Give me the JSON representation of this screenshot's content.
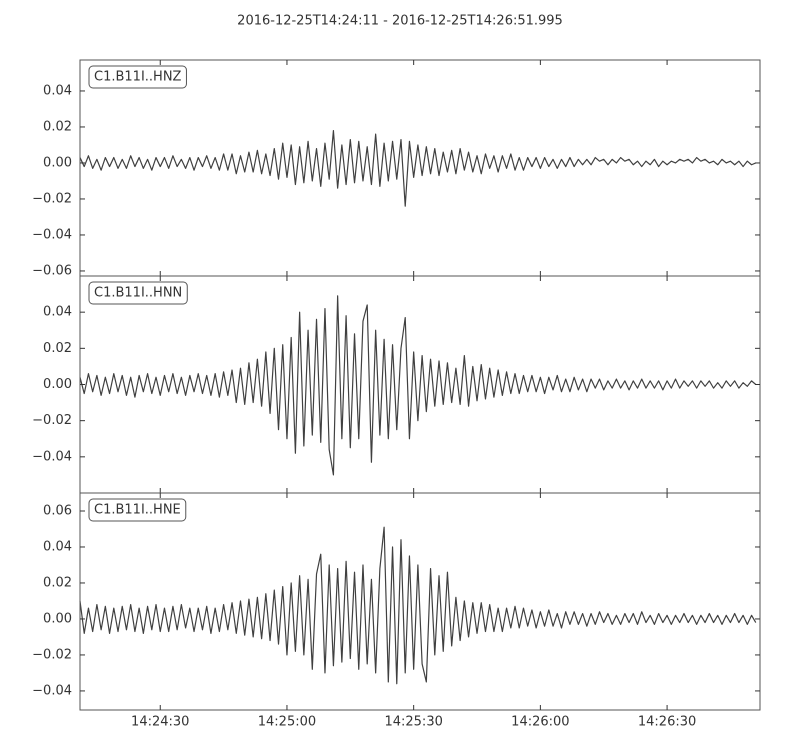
{
  "title": "2016-12-25T14:24:11  -  2016-12-25T14:26:51.995",
  "chart_data": [
    {
      "type": "line",
      "label": "C1.B11I..HNZ",
      "color": "#404040",
      "x": [
        "14:24:11",
        "14:24:12",
        "14:24:13",
        "14:24:14",
        "14:24:15",
        "14:24:16",
        "14:24:17",
        "14:24:18",
        "14:24:19",
        "14:24:20",
        "14:24:21",
        "14:24:22",
        "14:24:23",
        "14:24:24",
        "14:24:25",
        "14:24:26",
        "14:24:27",
        "14:24:28",
        "14:24:29",
        "14:24:30",
        "14:24:31",
        "14:24:32",
        "14:24:33",
        "14:24:34",
        "14:24:35",
        "14:24:36",
        "14:24:37",
        "14:24:38",
        "14:24:39",
        "14:24:40",
        "14:24:41",
        "14:24:42",
        "14:24:43",
        "14:24:44",
        "14:24:45",
        "14:24:46",
        "14:24:47",
        "14:24:48",
        "14:24:49",
        "14:24:50",
        "14:24:51",
        "14:24:52",
        "14:24:53",
        "14:24:54",
        "14:24:55",
        "14:24:56",
        "14:24:57",
        "14:24:58",
        "14:24:59",
        "14:25:00",
        "14:25:01",
        "14:25:02",
        "14:25:03",
        "14:25:04",
        "14:25:05",
        "14:25:06",
        "14:25:07",
        "14:25:08",
        "14:25:09",
        "14:25:10",
        "14:25:11",
        "14:25:12",
        "14:25:13",
        "14:25:14",
        "14:25:15",
        "14:25:16",
        "14:25:17",
        "14:25:18",
        "14:25:19",
        "14:25:20",
        "14:25:21",
        "14:25:22",
        "14:25:23",
        "14:25:24",
        "14:25:25",
        "14:25:26",
        "14:25:27",
        "14:25:28",
        "14:25:29",
        "14:25:30",
        "14:25:31",
        "14:25:32",
        "14:25:33",
        "14:25:34",
        "14:25:35",
        "14:25:36",
        "14:25:37",
        "14:25:38",
        "14:25:39",
        "14:25:40",
        "14:25:41",
        "14:25:42",
        "14:25:43",
        "14:25:44",
        "14:25:45",
        "14:25:46",
        "14:25:47",
        "14:25:48",
        "14:25:49",
        "14:25:50",
        "14:25:51",
        "14:25:52",
        "14:25:53",
        "14:25:54",
        "14:25:55",
        "14:25:56",
        "14:25:57",
        "14:25:58",
        "14:25:59",
        "14:26:00",
        "14:26:01",
        "14:26:02",
        "14:26:03",
        "14:26:04",
        "14:26:05",
        "14:26:06",
        "14:26:07",
        "14:26:08",
        "14:26:09",
        "14:26:10",
        "14:26:11",
        "14:26:12",
        "14:26:13",
        "14:26:14",
        "14:26:15",
        "14:26:16",
        "14:26:17",
        "14:26:18",
        "14:26:19",
        "14:26:20",
        "14:26:21",
        "14:26:22",
        "14:26:23",
        "14:26:24",
        "14:26:25",
        "14:26:26",
        "14:26:27",
        "14:26:28",
        "14:26:29",
        "14:26:30",
        "14:26:31",
        "14:26:32",
        "14:26:33",
        "14:26:34",
        "14:26:35",
        "14:26:36",
        "14:26:37",
        "14:26:38",
        "14:26:39",
        "14:26:40",
        "14:26:41",
        "14:26:42",
        "14:26:43",
        "14:26:44",
        "14:26:45",
        "14:26:46",
        "14:26:47",
        "14:26:48",
        "14:26:49",
        "14:26:50",
        "14:26:51"
      ],
      "values": [
        0.003,
        -0.002,
        0.004,
        -0.003,
        0.002,
        -0.004,
        0.003,
        -0.002,
        0.003,
        -0.003,
        0.002,
        -0.003,
        0.004,
        -0.002,
        0.003,
        -0.003,
        0.002,
        -0.004,
        0.003,
        -0.002,
        0.003,
        -0.003,
        0.004,
        -0.002,
        0.002,
        -0.003,
        0.003,
        -0.004,
        0.003,
        -0.002,
        0.004,
        -0.003,
        0.003,
        -0.004,
        0.005,
        -0.004,
        0.005,
        -0.006,
        0.004,
        -0.005,
        0.006,
        -0.005,
        0.007,
        -0.006,
        0.005,
        -0.007,
        0.008,
        -0.009,
        0.011,
        -0.008,
        0.01,
        -0.012,
        0.009,
        -0.011,
        0.012,
        -0.01,
        0.008,
        -0.013,
        0.011,
        -0.009,
        0.018,
        -0.014,
        0.01,
        -0.012,
        0.013,
        -0.011,
        0.012,
        -0.01,
        0.009,
        -0.012,
        0.016,
        -0.013,
        0.011,
        -0.01,
        0.012,
        -0.009,
        0.013,
        -0.024,
        0.012,
        -0.008,
        0.01,
        -0.007,
        0.009,
        -0.006,
        0.008,
        -0.007,
        0.006,
        -0.005,
        0.007,
        -0.006,
        0.008,
        -0.004,
        0.006,
        -0.005,
        0.004,
        -0.006,
        0.005,
        -0.003,
        0.004,
        -0.005,
        0.004,
        -0.003,
        0.005,
        -0.004,
        0.003,
        -0.004,
        0.003,
        -0.002,
        0.003,
        -0.003,
        0.003,
        -0.002,
        0.002,
        -0.003,
        0.002,
        -0.002,
        0.003,
        -0.002,
        0.002,
        -0.001,
        0.002,
        -0.001,
        0.003,
        0.001,
        0.002,
        -0.001,
        0.002,
        0,
        0.003,
        0.001,
        0.002,
        -0.001,
        0.001,
        -0.002,
        0.001,
        -0.001,
        0.002,
        -0.002,
        0.001,
        -0.001,
        0.001,
        0,
        0.002,
        0.001,
        0.002,
        0,
        0.003,
        0.001,
        0.002,
        0,
        0.001,
        -0.001,
        0.002,
        0,
        0.001,
        -0.001,
        0.001,
        -0.002,
        0.001,
        -0.001,
        0
      ],
      "xlim": [
        "14:24:11",
        "14:26:52"
      ],
      "ylim": [
        -0.0628,
        0.0572
      ],
      "yticks": [
        {
          "value": -0.06,
          "label": "−0.06"
        },
        {
          "value": -0.04,
          "label": "−0.04"
        },
        {
          "value": -0.02,
          "label": "−0.02"
        },
        {
          "value": 0,
          "label": "0.00"
        },
        0.02,
        0.04
      ]
    },
    {
      "type": "line",
      "label": "C1.B11I..HNN",
      "color": "#404040",
      "x": [
        "14:24:11",
        "14:24:12",
        "14:24:13",
        "14:24:14",
        "14:24:15",
        "14:24:16",
        "14:24:17",
        "14:24:18",
        "14:24:19",
        "14:24:20",
        "14:24:21",
        "14:24:22",
        "14:24:23",
        "14:24:24",
        "14:24:25",
        "14:24:26",
        "14:24:27",
        "14:24:28",
        "14:24:29",
        "14:24:30",
        "14:24:31",
        "14:24:32",
        "14:24:33",
        "14:24:34",
        "14:24:35",
        "14:24:36",
        "14:24:37",
        "14:24:38",
        "14:24:39",
        "14:24:40",
        "14:24:41",
        "14:24:42",
        "14:24:43",
        "14:24:44",
        "14:24:45",
        "14:24:46",
        "14:24:47",
        "14:24:48",
        "14:24:49",
        "14:24:50",
        "14:24:51",
        "14:24:52",
        "14:24:53",
        "14:24:54",
        "14:24:55",
        "14:24:56",
        "14:24:57",
        "14:24:58",
        "14:24:59",
        "14:25:00",
        "14:25:01",
        "14:25:02",
        "14:25:03",
        "14:25:04",
        "14:25:05",
        "14:25:06",
        "14:25:07",
        "14:25:08",
        "14:25:09",
        "14:25:10",
        "14:25:11",
        "14:25:12",
        "14:25:13",
        "14:25:14",
        "14:25:15",
        "14:25:16",
        "14:25:17",
        "14:25:18",
        "14:25:19",
        "14:25:20",
        "14:25:21",
        "14:25:22",
        "14:25:23",
        "14:25:24",
        "14:25:25",
        "14:25:26",
        "14:25:27",
        "14:25:28",
        "14:25:29",
        "14:25:30",
        "14:25:31",
        "14:25:32",
        "14:25:33",
        "14:25:34",
        "14:25:35",
        "14:25:36",
        "14:25:37",
        "14:25:38",
        "14:25:39",
        "14:25:40",
        "14:25:41",
        "14:25:42",
        "14:25:43",
        "14:25:44",
        "14:25:45",
        "14:25:46",
        "14:25:47",
        "14:25:48",
        "14:25:49",
        "14:25:50",
        "14:25:51",
        "14:25:52",
        "14:25:53",
        "14:25:54",
        "14:25:55",
        "14:25:56",
        "14:25:57",
        "14:25:58",
        "14:25:59",
        "14:26:00",
        "14:26:01",
        "14:26:02",
        "14:26:03",
        "14:26:04",
        "14:26:05",
        "14:26:06",
        "14:26:07",
        "14:26:08",
        "14:26:09",
        "14:26:10",
        "14:26:11",
        "14:26:12",
        "14:26:13",
        "14:26:14",
        "14:26:15",
        "14:26:16",
        "14:26:17",
        "14:26:18",
        "14:26:19",
        "14:26:20",
        "14:26:21",
        "14:26:22",
        "14:26:23",
        "14:26:24",
        "14:26:25",
        "14:26:26",
        "14:26:27",
        "14:26:28",
        "14:26:29",
        "14:26:30",
        "14:26:31",
        "14:26:32",
        "14:26:33",
        "14:26:34",
        "14:26:35",
        "14:26:36",
        "14:26:37",
        "14:26:38",
        "14:26:39",
        "14:26:40",
        "14:26:41",
        "14:26:42",
        "14:26:43",
        "14:26:44",
        "14:26:45",
        "14:26:46",
        "14:26:47",
        "14:26:48",
        "14:26:49",
        "14:26:50",
        "14:26:51"
      ],
      "values": [
        0.004,
        -0.005,
        0.006,
        -0.004,
        0.005,
        -0.006,
        0.004,
        -0.005,
        0.006,
        -0.004,
        0.005,
        -0.006,
        0.004,
        -0.007,
        0.005,
        -0.004,
        0.006,
        -0.005,
        0.004,
        -0.006,
        0.005,
        -0.004,
        0.006,
        -0.005,
        0.004,
        -0.006,
        0.005,
        -0.004,
        0.006,
        -0.005,
        0.005,
        -0.006,
        0.006,
        -0.007,
        0.007,
        -0.006,
        0.008,
        -0.01,
        0.009,
        -0.011,
        0.012,
        -0.01,
        0.014,
        -0.012,
        0.018,
        -0.016,
        0.02,
        -0.025,
        0.022,
        -0.03,
        0.026,
        -0.038,
        0.04,
        -0.034,
        0.03,
        -0.028,
        0.036,
        -0.032,
        0.042,
        -0.036,
        -0.05,
        0.049,
        -0.03,
        0.038,
        -0.035,
        0.028,
        -0.03,
        0.035,
        0.044,
        -0.043,
        0.03,
        -0.028,
        0.025,
        -0.03,
        0.022,
        -0.025,
        0.02,
        0.037,
        -0.03,
        0.018,
        -0.02,
        0.016,
        -0.015,
        0.014,
        -0.012,
        0.013,
        -0.011,
        0.012,
        -0.01,
        0.009,
        -0.011,
        0.016,
        -0.012,
        0.01,
        -0.009,
        0.011,
        -0.008,
        0.009,
        -0.007,
        0.008,
        -0.006,
        0.007,
        -0.005,
        0.006,
        -0.005,
        0.005,
        -0.004,
        0.005,
        -0.004,
        0.004,
        -0.005,
        0.004,
        -0.003,
        0.005,
        -0.004,
        0.003,
        -0.004,
        0.004,
        -0.003,
        0.003,
        -0.004,
        0.003,
        -0.002,
        0.003,
        -0.003,
        0.002,
        -0.002,
        0.003,
        -0.002,
        0.002,
        -0.003,
        0.002,
        -0.002,
        0.003,
        -0.002,
        0.002,
        -0.002,
        0.002,
        -0.003,
        0.002,
        -0.002,
        0.003,
        -0.002,
        0.002,
        -0.001,
        0.002,
        -0.002,
        0.002,
        -0.001,
        0.002,
        -0.002,
        0.001,
        -0.002,
        0.002,
        -0.001,
        0.002,
        -0.002,
        0.001,
        -0.001,
        0.002,
        0
      ],
      "xlim": [
        "14:24:11",
        "14:26:52"
      ],
      "ylim": [
        -0.06,
        0.06
      ],
      "yticks": [
        {
          "value": -0.04,
          "label": "−0.04"
        },
        {
          "value": -0.02,
          "label": "−0.02"
        },
        {
          "value": 0,
          "label": "0.00"
        },
        0.02,
        0.04
      ]
    },
    {
      "type": "line",
      "label": "C1.B11I..HNE",
      "color": "#404040",
      "x": [
        "14:24:11",
        "14:24:12",
        "14:24:13",
        "14:24:14",
        "14:24:15",
        "14:24:16",
        "14:24:17",
        "14:24:18",
        "14:24:19",
        "14:24:20",
        "14:24:21",
        "14:24:22",
        "14:24:23",
        "14:24:24",
        "14:24:25",
        "14:24:26",
        "14:24:27",
        "14:24:28",
        "14:24:29",
        "14:24:30",
        "14:24:31",
        "14:24:32",
        "14:24:33",
        "14:24:34",
        "14:24:35",
        "14:24:36",
        "14:24:37",
        "14:24:38",
        "14:24:39",
        "14:24:40",
        "14:24:41",
        "14:24:42",
        "14:24:43",
        "14:24:44",
        "14:24:45",
        "14:24:46",
        "14:24:47",
        "14:24:48",
        "14:24:49",
        "14:24:50",
        "14:24:51",
        "14:24:52",
        "14:24:53",
        "14:24:54",
        "14:24:55",
        "14:24:56",
        "14:24:57",
        "14:24:58",
        "14:24:59",
        "14:25:00",
        "14:25:01",
        "14:25:02",
        "14:25:03",
        "14:25:04",
        "14:25:05",
        "14:25:06",
        "14:25:07",
        "14:25:08",
        "14:25:09",
        "14:25:10",
        "14:25:11",
        "14:25:12",
        "14:25:13",
        "14:25:14",
        "14:25:15",
        "14:25:16",
        "14:25:17",
        "14:25:18",
        "14:25:19",
        "14:25:20",
        "14:25:21",
        "14:25:22",
        "14:25:23",
        "14:25:24",
        "14:25:25",
        "14:25:26",
        "14:25:27",
        "14:25:28",
        "14:25:29",
        "14:25:30",
        "14:25:31",
        "14:25:32",
        "14:25:33",
        "14:25:34",
        "14:25:35",
        "14:25:36",
        "14:25:37",
        "14:25:38",
        "14:25:39",
        "14:25:40",
        "14:25:41",
        "14:25:42",
        "14:25:43",
        "14:25:44",
        "14:25:45",
        "14:25:46",
        "14:25:47",
        "14:25:48",
        "14:25:49",
        "14:25:50",
        "14:25:51",
        "14:25:52",
        "14:25:53",
        "14:25:54",
        "14:25:55",
        "14:25:56",
        "14:25:57",
        "14:25:58",
        "14:25:59",
        "14:26:00",
        "14:26:01",
        "14:26:02",
        "14:26:03",
        "14:26:04",
        "14:26:05",
        "14:26:06",
        "14:26:07",
        "14:26:08",
        "14:26:09",
        "14:26:10",
        "14:26:11",
        "14:26:12",
        "14:26:13",
        "14:26:14",
        "14:26:15",
        "14:26:16",
        "14:26:17",
        "14:26:18",
        "14:26:19",
        "14:26:20",
        "14:26:21",
        "14:26:22",
        "14:26:23",
        "14:26:24",
        "14:26:25",
        "14:26:26",
        "14:26:27",
        "14:26:28",
        "14:26:29",
        "14:26:30",
        "14:26:31",
        "14:26:32",
        "14:26:33",
        "14:26:34",
        "14:26:35",
        "14:26:36",
        "14:26:37",
        "14:26:38",
        "14:26:39",
        "14:26:40",
        "14:26:41",
        "14:26:42",
        "14:26:43",
        "14:26:44",
        "14:26:45",
        "14:26:46",
        "14:26:47",
        "14:26:48",
        "14:26:49",
        "14:26:50",
        "14:26:51"
      ],
      "values": [
        0.01,
        -0.008,
        0.006,
        -0.007,
        0.008,
        -0.006,
        0.007,
        -0.008,
        0.006,
        -0.007,
        0.007,
        -0.006,
        0.008,
        -0.007,
        0.006,
        -0.008,
        0.007,
        -0.006,
        0.008,
        -0.007,
        0.006,
        -0.007,
        0.007,
        -0.006,
        0.008,
        -0.005,
        0.006,
        -0.007,
        0.006,
        -0.006,
        0.007,
        -0.008,
        0.006,
        -0.007,
        0.008,
        -0.006,
        0.009,
        -0.008,
        0.01,
        -0.009,
        0.011,
        -0.01,
        0.012,
        -0.011,
        0.014,
        -0.012,
        0.016,
        -0.014,
        0.018,
        -0.02,
        0.02,
        -0.018,
        0.024,
        -0.02,
        0.022,
        -0.028,
        0.025,
        0.036,
        -0.03,
        0.03,
        -0.026,
        0.028,
        -0.024,
        0.032,
        -0.022,
        0.026,
        -0.028,
        0.03,
        -0.025,
        0.022,
        -0.03,
        0.028,
        0.051,
        -0.035,
        0.04,
        -0.036,
        0.044,
        -0.03,
        0.035,
        -0.028,
        0.03,
        -0.025,
        -0.035,
        0.028,
        -0.02,
        0.024,
        -0.018,
        0.026,
        -0.015,
        0.012,
        -0.012,
        0.01,
        -0.01,
        0.009,
        -0.008,
        0.009,
        -0.007,
        0.008,
        -0.007,
        0.006,
        -0.007,
        0.006,
        -0.005,
        0.007,
        -0.005,
        0.006,
        -0.004,
        0.005,
        -0.005,
        0.004,
        -0.004,
        0.005,
        -0.004,
        0.003,
        -0.005,
        0.004,
        -0.003,
        0.004,
        -0.003,
        0.003,
        -0.004,
        0.003,
        -0.003,
        0.004,
        -0.002,
        0.003,
        -0.003,
        0.002,
        -0.003,
        0.003,
        -0.002,
        0.003,
        -0.003,
        0.004,
        -0.002,
        0.002,
        -0.003,
        0.003,
        -0.002,
        0.002,
        -0.003,
        0.002,
        -0.002,
        0.003,
        -0.002,
        0.002,
        -0.003,
        0.002,
        -0.002,
        0.003,
        -0.002,
        0.002,
        -0.003,
        0.002,
        -0.002,
        0.003,
        -0.002,
        0.002,
        -0.003,
        0.002,
        -0.002
      ],
      "xlim": [
        "14:24:11",
        "14:26:52"
      ],
      "ylim": [
        -0.0506,
        0.07
      ],
      "yticks": [
        {
          "value": -0.04,
          "label": "−0.04"
        },
        {
          "value": -0.02,
          "label": "−0.02"
        },
        {
          "value": 0,
          "label": "0.00"
        },
        0.02,
        0.04,
        0.06
      ],
      "xticks": [
        "14:24:30",
        "14:25:00",
        "14:25:30",
        "14:26:00",
        "14:26:30"
      ]
    }
  ]
}
